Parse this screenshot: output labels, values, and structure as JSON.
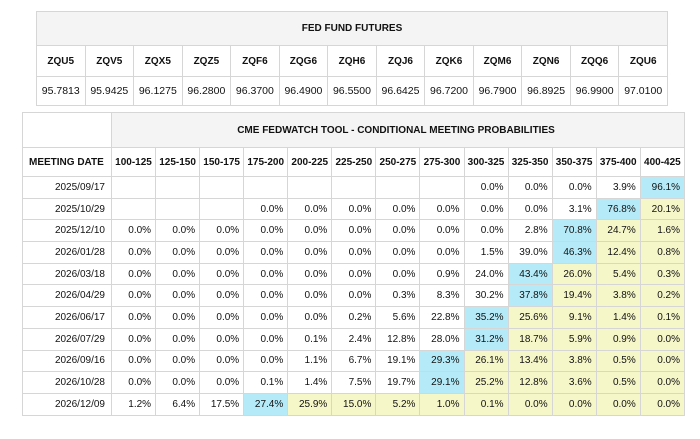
{
  "futures": {
    "title": "FED FUND FUTURES",
    "codes": [
      "ZQU5",
      "ZQV5",
      "ZQX5",
      "ZQZ5",
      "ZQF6",
      "ZQG6",
      "ZQH6",
      "ZQJ6",
      "ZQK6",
      "ZQM6",
      "ZQN6",
      "ZQQ6",
      "ZQU6"
    ],
    "values": [
      "95.7813",
      "95.9425",
      "96.1275",
      "96.2800",
      "96.3700",
      "96.4900",
      "96.5500",
      "96.6425",
      "96.7200",
      "96.7900",
      "96.8925",
      "96.9900",
      "97.0100"
    ]
  },
  "fedwatch": {
    "title": "CME FEDWATCH TOOL - CONDITIONAL MEETING PROBABILITIES",
    "meeting_date_label": "MEETING DATE",
    "ranges": [
      "100-125",
      "125-150",
      "150-175",
      "175-200",
      "200-225",
      "225-250",
      "250-275",
      "275-300",
      "300-325",
      "325-350",
      "350-375",
      "375-400",
      "400-425"
    ],
    "colors": {
      "highlight": "#b5ebf8",
      "shaded": "#f6f7c9",
      "header_bg": "#f4f4f4"
    },
    "rows": [
      {
        "date": "2025/09/17",
        "cells": [
          "",
          "",
          "",
          "",
          "",
          "",
          "",
          "",
          "0.0%",
          "0.0%",
          "0.0%",
          "3.9%",
          "96.1%"
        ]
      },
      {
        "date": "2025/10/29",
        "cells": [
          "",
          "",
          "",
          "0.0%",
          "0.0%",
          "0.0%",
          "0.0%",
          "0.0%",
          "0.0%",
          "0.0%",
          "3.1%",
          "76.8%",
          "20.1%"
        ]
      },
      {
        "date": "2025/12/10",
        "cells": [
          "0.0%",
          "0.0%",
          "0.0%",
          "0.0%",
          "0.0%",
          "0.0%",
          "0.0%",
          "0.0%",
          "0.0%",
          "2.8%",
          "70.8%",
          "24.7%",
          "1.6%"
        ]
      },
      {
        "date": "2026/01/28",
        "cells": [
          "0.0%",
          "0.0%",
          "0.0%",
          "0.0%",
          "0.0%",
          "0.0%",
          "0.0%",
          "0.0%",
          "1.5%",
          "39.0%",
          "46.3%",
          "12.4%",
          "0.8%"
        ]
      },
      {
        "date": "2026/03/18",
        "cells": [
          "0.0%",
          "0.0%",
          "0.0%",
          "0.0%",
          "0.0%",
          "0.0%",
          "0.0%",
          "0.9%",
          "24.0%",
          "43.4%",
          "26.0%",
          "5.4%",
          "0.3%"
        ]
      },
      {
        "date": "2026/04/29",
        "cells": [
          "0.0%",
          "0.0%",
          "0.0%",
          "0.0%",
          "0.0%",
          "0.0%",
          "0.3%",
          "8.3%",
          "30.2%",
          "37.8%",
          "19.4%",
          "3.8%",
          "0.2%"
        ]
      },
      {
        "date": "2026/06/17",
        "cells": [
          "0.0%",
          "0.0%",
          "0.0%",
          "0.0%",
          "0.0%",
          "0.2%",
          "5.6%",
          "22.8%",
          "35.2%",
          "25.6%",
          "9.1%",
          "1.4%",
          "0.1%"
        ]
      },
      {
        "date": "2026/07/29",
        "cells": [
          "0.0%",
          "0.0%",
          "0.0%",
          "0.0%",
          "0.1%",
          "2.4%",
          "12.8%",
          "28.0%",
          "31.2%",
          "18.7%",
          "5.9%",
          "0.9%",
          "0.0%"
        ]
      },
      {
        "date": "2026/09/16",
        "cells": [
          "0.0%",
          "0.0%",
          "0.0%",
          "0.0%",
          "1.1%",
          "6.7%",
          "19.1%",
          "29.3%",
          "26.1%",
          "13.4%",
          "3.8%",
          "0.5%",
          "0.0%"
        ]
      },
      {
        "date": "2026/10/28",
        "cells": [
          "0.0%",
          "0.0%",
          "0.0%",
          "0.1%",
          "1.4%",
          "7.5%",
          "19.7%",
          "29.1%",
          "25.2%",
          "12.8%",
          "3.6%",
          "0.5%",
          "0.0%"
        ]
      },
      {
        "date": "2026/12/09",
        "cells": [
          "1.2%",
          "6.4%",
          "17.5%",
          "27.4%",
          "25.9%",
          "15.0%",
          "5.2%",
          "1.0%",
          "0.1%",
          "0.0%",
          "0.0%",
          "0.0%",
          "0.0%"
        ]
      }
    ]
  }
}
